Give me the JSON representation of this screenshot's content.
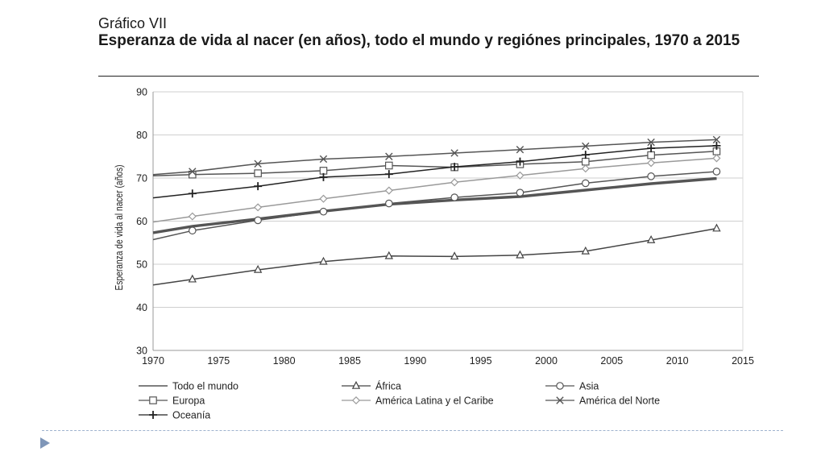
{
  "header": {
    "label": "Gráfico VII",
    "title": "Esperanza de vida al nacer (en años), todo el mundo y  regiónes principales, 1970 a 2015"
  },
  "chart_data": {
    "type": "line",
    "ylabel": "Esperanza de vida al nacer (años)",
    "xlabel": "",
    "xlim": [
      1970,
      2015
    ],
    "ylim": [
      30,
      90
    ],
    "xticks": [
      "1970",
      "1975",
      "1980",
      "1985",
      "1990",
      "1995",
      "2000",
      "2005",
      "2010",
      "2015"
    ],
    "yticks": [
      "30",
      "40",
      "50",
      "60",
      "70",
      "80",
      "90"
    ],
    "grid": "horizontal",
    "legend_position": "bottom",
    "series": [
      {
        "name": "Todo el mundo",
        "marker": "none",
        "color": "#555555",
        "x": [
          1970,
          1973,
          1978,
          1983,
          1988,
          1993,
          1998,
          2003,
          2008,
          2013
        ],
        "y": [
          57.3,
          58.8,
          60.5,
          62.3,
          63.9,
          64.9,
          65.7,
          67.2,
          68.7,
          69.9
        ]
      },
      {
        "name": "África",
        "marker": "triangle",
        "color": "#444444",
        "x": [
          1970,
          1973,
          1978,
          1983,
          1988,
          1993,
          1998,
          2003,
          2008,
          2013
        ],
        "y": [
          45.2,
          46.5,
          48.7,
          50.6,
          51.9,
          51.8,
          52.1,
          53.0,
          55.6,
          58.3
        ]
      },
      {
        "name": "Asia",
        "marker": "circle",
        "color": "#555555",
        "x": [
          1970,
          1973,
          1978,
          1983,
          1988,
          1993,
          1998,
          2003,
          2008,
          2013
        ],
        "y": [
          55.7,
          57.8,
          60.2,
          62.2,
          64.1,
          65.5,
          66.6,
          68.8,
          70.4,
          71.5
        ]
      },
      {
        "name": "Europa",
        "marker": "square",
        "color": "#555555",
        "x": [
          1970,
          1973,
          1978,
          1983,
          1988,
          1993,
          1998,
          2003,
          2008,
          2013
        ],
        "y": [
          70.5,
          70.8,
          71.1,
          71.7,
          72.9,
          72.5,
          73.2,
          73.8,
          75.3,
          76.2
        ]
      },
      {
        "name": "América Latina y el Caribe",
        "marker": "diamond",
        "color": "#9a9a9a",
        "x": [
          1970,
          1973,
          1978,
          1983,
          1988,
          1993,
          1998,
          2003,
          2008,
          2013
        ],
        "y": [
          59.8,
          61.1,
          63.2,
          65.2,
          67.1,
          69.0,
          70.6,
          72.2,
          73.5,
          74.6
        ]
      },
      {
        "name": "América del Norte",
        "marker": "x",
        "color": "#555555",
        "x": [
          1970,
          1973,
          1978,
          1983,
          1988,
          1993,
          1998,
          2003,
          2008,
          2013
        ],
        "y": [
          70.8,
          71.5,
          73.3,
          74.4,
          75.0,
          75.8,
          76.6,
          77.4,
          78.3,
          78.9
        ]
      },
      {
        "name": "Oceanía",
        "marker": "plus",
        "color": "#222222",
        "x": [
          1970,
          1973,
          1978,
          1983,
          1988,
          1993,
          1998,
          2003,
          2008,
          2013
        ],
        "y": [
          65.4,
          66.4,
          68.1,
          70.2,
          70.9,
          72.6,
          73.8,
          75.4,
          76.9,
          77.5
        ]
      }
    ]
  }
}
